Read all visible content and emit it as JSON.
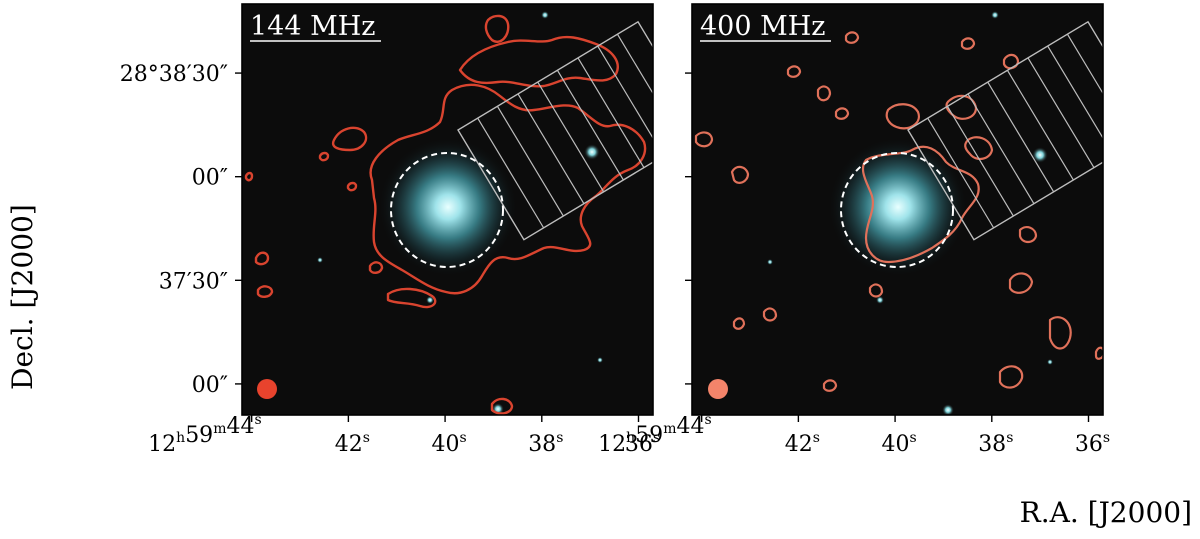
{
  "figure": {
    "ylabel": "Decl.  [J2000]",
    "xlabel": "R.A.  [J2000]"
  },
  "chart_data": [
    {
      "type": "image",
      "panel_label": "144 MHz",
      "contour_color": "#d9442f",
      "beam_color": "#e8432d",
      "xticks": [
        {
          "label": "12h59m44s",
          "ra_s": 44.0
        },
        {
          "label": "42s",
          "ra_s": 42.0
        },
        {
          "label": "40s",
          "ra_s": 40.0
        },
        {
          "label": "38s",
          "ra_s": 38.0
        },
        {
          "label": "36s",
          "ra_s": 36.0
        }
      ],
      "yticks": [
        {
          "label": "28°38′30″",
          "dec_arcsec": 90
        },
        {
          "label": "00″",
          "dec_arcsec": 60
        },
        {
          "label": "37′30″",
          "dec_arcsec": 30
        },
        {
          "label": "00″",
          "dec_arcsec": 0
        }
      ],
      "xlim_ra_s": [
        44.2,
        35.7
      ],
      "ylim_dec_arcsec": [
        -9,
        110
      ]
    },
    {
      "type": "image",
      "panel_label": "400 MHz",
      "contour_color": "#e0715a",
      "beam_color": "#f4846a",
      "xticks": [
        {
          "label": "12h59m44s",
          "ra_s": 44.0
        },
        {
          "label": "42s",
          "ra_s": 42.0
        },
        {
          "label": "40s",
          "ra_s": 40.0
        },
        {
          "label": "38s",
          "ra_s": 38.0
        },
        {
          "label": "36s",
          "ra_s": 36.0
        }
      ],
      "yticks": [
        {
          "label": "",
          "dec_arcsec": 90
        },
        {
          "label": "",
          "dec_arcsec": 60
        },
        {
          "label": "",
          "dec_arcsec": 30
        },
        {
          "label": "",
          "dec_arcsec": 0
        }
      ],
      "xlim_ra_s": [
        44.2,
        35.7
      ],
      "ylim_dec_arcsec": [
        -9,
        110
      ]
    }
  ]
}
